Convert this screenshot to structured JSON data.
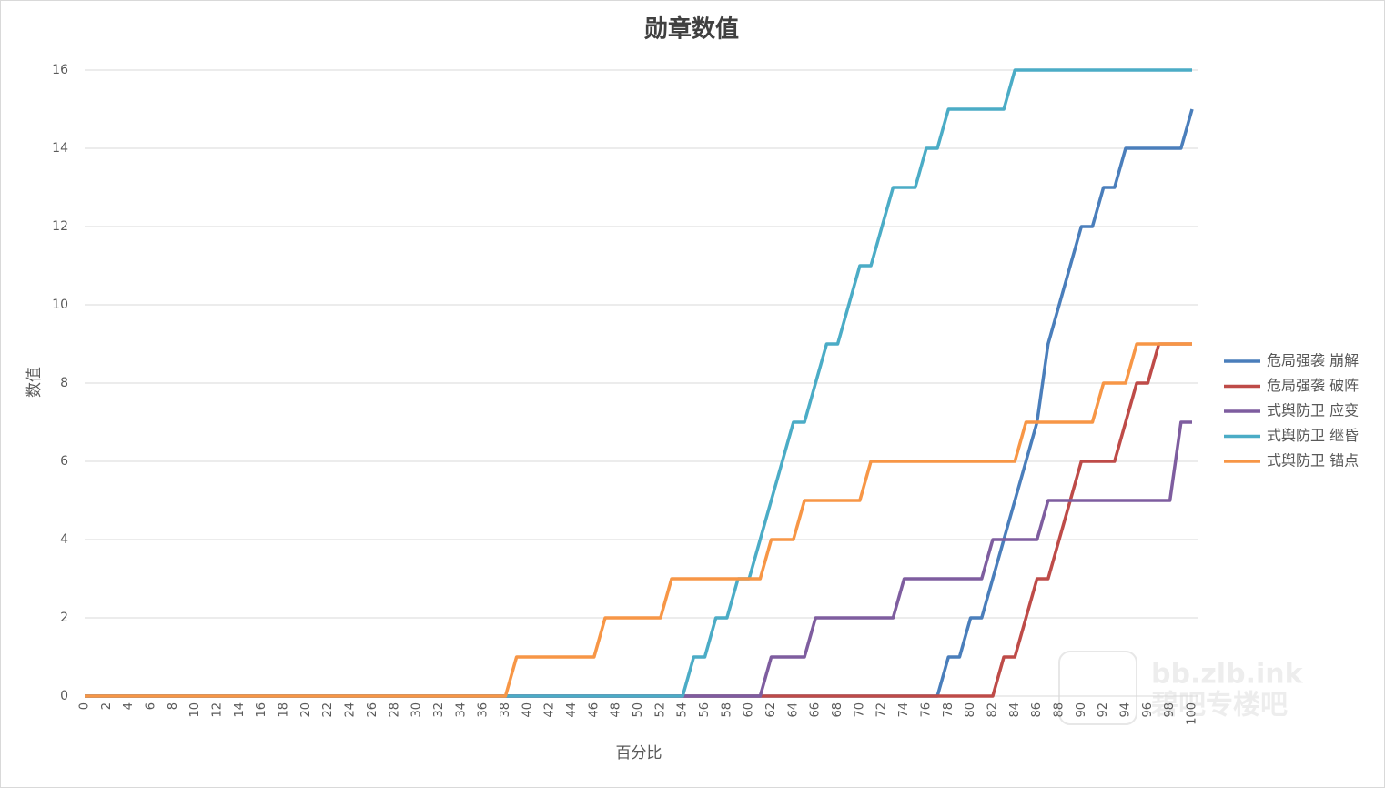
{
  "chart_data": {
    "type": "line",
    "title": "勋章数值",
    "x_label": "百分比",
    "y_label": "数值",
    "x": [
      0,
      1,
      2,
      3,
      4,
      5,
      6,
      7,
      8,
      9,
      10,
      11,
      12,
      13,
      14,
      15,
      16,
      17,
      18,
      19,
      20,
      21,
      22,
      23,
      24,
      25,
      26,
      27,
      28,
      29,
      30,
      31,
      32,
      33,
      34,
      35,
      36,
      37,
      38,
      39,
      40,
      41,
      42,
      43,
      44,
      45,
      46,
      47,
      48,
      49,
      50,
      51,
      52,
      53,
      54,
      55,
      56,
      57,
      58,
      59,
      60,
      61,
      62,
      63,
      64,
      65,
      66,
      67,
      68,
      69,
      70,
      71,
      72,
      73,
      74,
      75,
      76,
      77,
      78,
      79,
      80,
      81,
      82,
      83,
      84,
      85,
      86,
      87,
      88,
      89,
      90,
      91,
      92,
      93,
      94,
      95,
      96,
      97,
      98,
      99,
      100
    ],
    "xlim": [
      0,
      100
    ],
    "xticks": [
      0,
      2,
      4,
      6,
      8,
      10,
      12,
      14,
      16,
      18,
      20,
      22,
      24,
      26,
      28,
      30,
      32,
      34,
      36,
      38,
      40,
      42,
      44,
      46,
      48,
      50,
      52,
      54,
      56,
      58,
      60,
      62,
      64,
      66,
      68,
      70,
      72,
      74,
      76,
      78,
      80,
      82,
      84,
      86,
      88,
      90,
      92,
      94,
      96,
      98,
      100
    ],
    "ylim": [
      0,
      16
    ],
    "yticks": [
      0,
      2,
      4,
      6,
      8,
      10,
      12,
      14,
      16
    ],
    "grid": true,
    "legend": "right",
    "series": [
      {
        "name": "危局强袭 崩解",
        "color": "#4a7ebb",
        "values": [
          0,
          0,
          0,
          0,
          0,
          0,
          0,
          0,
          0,
          0,
          0,
          0,
          0,
          0,
          0,
          0,
          0,
          0,
          0,
          0,
          0,
          0,
          0,
          0,
          0,
          0,
          0,
          0,
          0,
          0,
          0,
          0,
          0,
          0,
          0,
          0,
          0,
          0,
          0,
          0,
          0,
          0,
          0,
          0,
          0,
          0,
          0,
          0,
          0,
          0,
          0,
          0,
          0,
          0,
          0,
          0,
          0,
          0,
          0,
          0,
          0,
          0,
          0,
          0,
          0,
          0,
          0,
          0,
          0,
          0,
          0,
          0,
          0,
          0,
          0,
          0,
          0,
          0,
          1,
          1,
          2,
          2,
          3,
          4,
          5,
          6,
          7,
          9,
          10,
          11,
          12,
          12,
          13,
          13,
          14,
          14,
          14,
          14,
          14,
          14,
          15
        ]
      },
      {
        "name": "危局强袭 破阵",
        "color": "#be4b48",
        "values": [
          0,
          0,
          0,
          0,
          0,
          0,
          0,
          0,
          0,
          0,
          0,
          0,
          0,
          0,
          0,
          0,
          0,
          0,
          0,
          0,
          0,
          0,
          0,
          0,
          0,
          0,
          0,
          0,
          0,
          0,
          0,
          0,
          0,
          0,
          0,
          0,
          0,
          0,
          0,
          0,
          0,
          0,
          0,
          0,
          0,
          0,
          0,
          0,
          0,
          0,
          0,
          0,
          0,
          0,
          0,
          0,
          0,
          0,
          0,
          0,
          0,
          0,
          0,
          0,
          0,
          0,
          0,
          0,
          0,
          0,
          0,
          0,
          0,
          0,
          0,
          0,
          0,
          0,
          0,
          0,
          0,
          0,
          0,
          1,
          1,
          2,
          3,
          3,
          4,
          5,
          6,
          6,
          6,
          6,
          7,
          8,
          8,
          9,
          9,
          9,
          9
        ]
      },
      {
        "name": "式舆防卫 应变",
        "color": "#7e5d9f",
        "values": [
          0,
          0,
          0,
          0,
          0,
          0,
          0,
          0,
          0,
          0,
          0,
          0,
          0,
          0,
          0,
          0,
          0,
          0,
          0,
          0,
          0,
          0,
          0,
          0,
          0,
          0,
          0,
          0,
          0,
          0,
          0,
          0,
          0,
          0,
          0,
          0,
          0,
          0,
          0,
          0,
          0,
          0,
          0,
          0,
          0,
          0,
          0,
          0,
          0,
          0,
          0,
          0,
          0,
          0,
          0,
          0,
          0,
          0,
          0,
          0,
          0,
          0,
          1,
          1,
          1,
          1,
          2,
          2,
          2,
          2,
          2,
          2,
          2,
          2,
          3,
          3,
          3,
          3,
          3,
          3,
          3,
          3,
          4,
          4,
          4,
          4,
          4,
          5,
          5,
          5,
          5,
          5,
          5,
          5,
          5,
          5,
          5,
          5,
          5,
          7,
          7
        ]
      },
      {
        "name": "式舆防卫 继昏",
        "color": "#4bacc6",
        "values": [
          0,
          0,
          0,
          0,
          0,
          0,
          0,
          0,
          0,
          0,
          0,
          0,
          0,
          0,
          0,
          0,
          0,
          0,
          0,
          0,
          0,
          0,
          0,
          0,
          0,
          0,
          0,
          0,
          0,
          0,
          0,
          0,
          0,
          0,
          0,
          0,
          0,
          0,
          0,
          0,
          0,
          0,
          0,
          0,
          0,
          0,
          0,
          0,
          0,
          0,
          0,
          0,
          0,
          0,
          0,
          1,
          1,
          2,
          2,
          3,
          3,
          4,
          5,
          6,
          7,
          7,
          8,
          9,
          9,
          10,
          11,
          11,
          12,
          13,
          13,
          13,
          14,
          14,
          15,
          15,
          15,
          15,
          15,
          15,
          16,
          16,
          16,
          16,
          16,
          16,
          16,
          16,
          16,
          16,
          16,
          16,
          16,
          16,
          16,
          16,
          16
        ]
      },
      {
        "name": "式舆防卫 锚点",
        "color": "#f79646",
        "values": [
          0,
          0,
          0,
          0,
          0,
          0,
          0,
          0,
          0,
          0,
          0,
          0,
          0,
          0,
          0,
          0,
          0,
          0,
          0,
          0,
          0,
          0,
          0,
          0,
          0,
          0,
          0,
          0,
          0,
          0,
          0,
          0,
          0,
          0,
          0,
          0,
          0,
          0,
          0,
          1,
          1,
          1,
          1,
          1,
          1,
          1,
          1,
          2,
          2,
          2,
          2,
          2,
          2,
          3,
          3,
          3,
          3,
          3,
          3,
          3,
          3,
          3,
          4,
          4,
          4,
          5,
          5,
          5,
          5,
          5,
          5,
          6,
          6,
          6,
          6,
          6,
          6,
          6,
          6,
          6,
          6,
          6,
          6,
          6,
          6,
          7,
          7,
          7,
          7,
          7,
          7,
          7,
          8,
          8,
          8,
          9,
          9,
          9,
          9,
          9,
          9
        ]
      }
    ],
    "watermark": [
      "bb.zlb.ink",
      "碧吧专楼吧"
    ]
  }
}
